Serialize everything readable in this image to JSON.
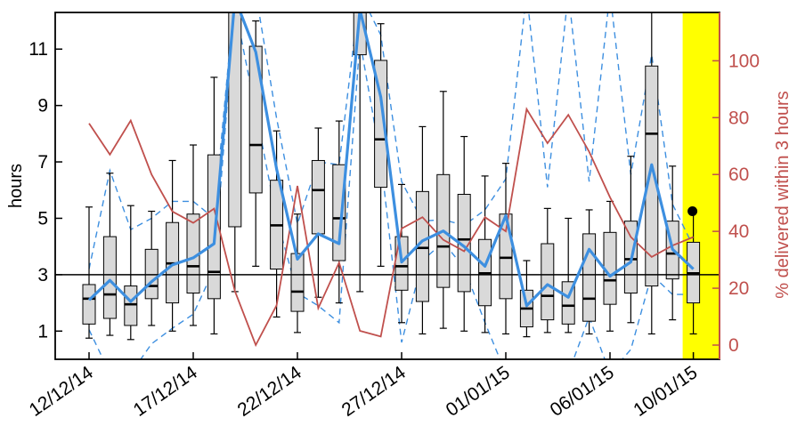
{
  "chart_data": {
    "type": "box",
    "title": "",
    "xlabel": "",
    "ylabel": "hours",
    "y2label": "% delivered within 3 hours",
    "ylim": [
      0,
      12.3
    ],
    "y2lim": [
      -5,
      117
    ],
    "yticks": [
      1,
      3,
      5,
      7,
      9,
      11
    ],
    "y2ticks": [
      0,
      20,
      40,
      60,
      80,
      100
    ],
    "x_dates": [
      "12/12/14",
      "13/12/14",
      "14/12/14",
      "15/12/14",
      "16/12/14",
      "17/12/14",
      "18/12/14",
      "19/12/14",
      "20/12/14",
      "21/12/14",
      "22/12/14",
      "23/12/14",
      "24/12/14",
      "25/12/14",
      "26/12/14",
      "27/12/14",
      "28/12/14",
      "29/12/14",
      "30/12/14",
      "31/12/14",
      "01/01/15",
      "02/01/15",
      "03/01/15",
      "04/01/15",
      "05/01/15",
      "06/01/15",
      "07/01/15",
      "08/01/15",
      "09/01/15",
      "10/01/15"
    ],
    "xtick_labels": [
      "12/12/14",
      "17/12/14",
      "22/12/14",
      "27/12/14",
      "01/01/15",
      "06/01/15",
      "10/01/15"
    ],
    "reference_line_y": 3,
    "highlight_date": "10/01/15",
    "highlight_color": "#ffff00",
    "colors": {
      "box_fill": "#d9d9d9",
      "mean_line": "#3d8fe0",
      "dashed_line": "#3d8fe0",
      "pct_line": "#c0504d",
      "right_axis": "#c0504d"
    },
    "box_series": [
      {
        "date": "12/12/14",
        "whisker_low": 0.75,
        "q1": 1.25,
        "median": 2.15,
        "q3": 2.65,
        "whisker_high": 5.4
      },
      {
        "date": "13/12/14",
        "whisker_low": 0.85,
        "q1": 1.45,
        "median": 2.3,
        "q3": 4.35,
        "whisker_high": 6.6
      },
      {
        "date": "14/12/14",
        "whisker_low": 0.7,
        "q1": 1.2,
        "median": 1.95,
        "q3": 2.6,
        "whisker_high": 5.45
      },
      {
        "date": "15/12/14",
        "whisker_low": 1.2,
        "q1": 2.15,
        "median": 2.6,
        "q3": 3.9,
        "whisker_high": 5.25
      },
      {
        "date": "16/12/14",
        "whisker_low": 1.0,
        "q1": 2.0,
        "median": 3.4,
        "q3": 4.85,
        "whisker_high": 7.05
      },
      {
        "date": "17/12/14",
        "whisker_low": 1.2,
        "q1": 2.35,
        "median": 3.3,
        "q3": 5.15,
        "whisker_high": 7.6
      },
      {
        "date": "18/12/14",
        "whisker_low": 0.9,
        "q1": 2.15,
        "median": 3.1,
        "q3": 7.25,
        "whisker_high": 10.0
      },
      {
        "date": "19/12/14",
        "whisker_low": 2.4,
        "q1": 4.7,
        "median": 13.0,
        "q3": 13.0,
        "whisker_high": 13.0
      },
      {
        "date": "20/12/14",
        "whisker_low": 3.3,
        "q1": 5.9,
        "median": 7.6,
        "q3": 11.1,
        "whisker_high": 12.0
      },
      {
        "date": "21/12/14",
        "whisker_low": 1.5,
        "q1": 3.2,
        "median": 4.75,
        "q3": 6.35,
        "whisker_high": 8.1
      },
      {
        "date": "22/12/14",
        "whisker_low": 0.95,
        "q1": 1.7,
        "median": 2.4,
        "q3": 3.75,
        "whisker_high": 5.15
      },
      {
        "date": "23/12/14",
        "whisker_low": 2.2,
        "q1": 4.45,
        "median": 6.0,
        "q3": 7.05,
        "whisker_high": 8.2
      },
      {
        "date": "24/12/14",
        "whisker_low": 2.0,
        "q1": 3.5,
        "median": 5.0,
        "q3": 6.9,
        "whisker_high": 8.45
      },
      {
        "date": "25/12/14",
        "whisker_low": 2.4,
        "q1": 10.8,
        "median": 13.0,
        "q3": 13.0,
        "whisker_high": 13.0
      },
      {
        "date": "26/12/14",
        "whisker_low": 3.3,
        "q1": 6.1,
        "median": 7.8,
        "q3": 10.6,
        "whisker_high": 11.9
      },
      {
        "date": "27/12/14",
        "whisker_low": 1.3,
        "q1": 2.45,
        "median": 3.3,
        "q3": 4.35,
        "whisker_high": 6.2
      },
      {
        "date": "28/12/14",
        "whisker_low": 0.9,
        "q1": 2.05,
        "median": 3.95,
        "q3": 5.95,
        "whisker_high": 8.25
      },
      {
        "date": "29/12/14",
        "whisker_low": 1.1,
        "q1": 2.55,
        "median": 4.0,
        "q3": 6.55,
        "whisker_high": 9.5
      },
      {
        "date": "30/12/14",
        "whisker_low": 1.0,
        "q1": 2.4,
        "median": 4.25,
        "q3": 5.85,
        "whisker_high": 7.9
      },
      {
        "date": "31/12/14",
        "whisker_low": 0.95,
        "q1": 1.9,
        "median": 3.05,
        "q3": 4.25,
        "whisker_high": 6.5
      },
      {
        "date": "01/01/15",
        "whisker_low": 0.9,
        "q1": 2.15,
        "median": 3.6,
        "q3": 5.15,
        "whisker_high": 6.95
      },
      {
        "date": "02/01/15",
        "whisker_low": 0.8,
        "q1": 1.15,
        "median": 1.8,
        "q3": 2.45,
        "whisker_high": 3.5
      },
      {
        "date": "03/01/15",
        "whisker_low": 0.95,
        "q1": 1.4,
        "median": 2.25,
        "q3": 4.1,
        "whisker_high": 5.35
      },
      {
        "date": "04/01/15",
        "whisker_low": 0.95,
        "q1": 1.25,
        "median": 1.9,
        "q3": 2.75,
        "whisker_high": 5.0
      },
      {
        "date": "05/01/15",
        "whisker_low": 0.9,
        "q1": 1.35,
        "median": 2.15,
        "q3": 4.45,
        "whisker_high": 5.3
      },
      {
        "date": "06/01/15",
        "whisker_low": 1.0,
        "q1": 1.95,
        "median": 2.8,
        "q3": 4.5,
        "whisker_high": 5.6
      },
      {
        "date": "07/01/15",
        "whisker_low": 1.3,
        "q1": 2.35,
        "median": 3.55,
        "q3": 4.9,
        "whisker_high": 7.2
      },
      {
        "date": "08/01/15",
        "whisker_low": 0.9,
        "q1": 2.6,
        "median": 8.0,
        "q3": 10.4,
        "whisker_high": 12.3
      },
      {
        "date": "09/01/15",
        "whisker_low": 1.4,
        "q1": 2.85,
        "median": 3.75,
        "q3": 4.9,
        "whisker_high": 6.85
      },
      {
        "date": "10/01/15",
        "whisker_low": 0.9,
        "q1": 2.0,
        "median": 3.05,
        "q3": 4.15,
        "whisker_high": 5.25
      }
    ],
    "mean_line": [
      2.1,
      2.8,
      2.05,
      2.75,
      3.35,
      3.6,
      4.1,
      12.8,
      10.9,
      6.75,
      3.55,
      4.45,
      4.1,
      12.4,
      9.3,
      3.45,
      4.2,
      4.55,
      4.0,
      3.3,
      5.1,
      1.9,
      2.65,
      2.2,
      3.9,
      2.95,
      3.45,
      6.9,
      3.9,
      3.2
    ],
    "upper_dashed": [
      3.2,
      6.7,
      4.6,
      5.0,
      5.6,
      5.6,
      5.0,
      13.0,
      13.0,
      8.55,
      4.8,
      7.0,
      6.9,
      13.0,
      11.5,
      6.3,
      4.9,
      4.95,
      4.75,
      5.3,
      6.4,
      13.0,
      6.1,
      13.0,
      6.3,
      13.0,
      6.55,
      10.8,
      5.5,
      4.0
    ],
    "lower_dashed": [
      1.05,
      -0.5,
      -0.5,
      0.55,
      1.1,
      1.6,
      3.2,
      12.5,
      8.8,
      5.0,
      2.35,
      1.9,
      1.3,
      11.3,
      7.1,
      0.6,
      3.5,
      4.15,
      3.25,
      1.3,
      -0.5,
      -0.5,
      -0.5,
      -0.5,
      1.5,
      -0.5,
      0.35,
      3.0,
      2.3,
      2.3
    ],
    "pct_delivered": [
      78,
      67,
      79,
      60,
      47,
      43,
      48,
      19,
      0,
      14,
      56,
      13,
      29,
      5,
      3,
      41,
      45,
      37,
      33,
      45,
      40,
      83,
      71,
      81,
      68,
      52,
      38,
      31,
      35,
      38
    ],
    "point_marker": {
      "date": "10/01/15",
      "y": 5.25
    }
  }
}
